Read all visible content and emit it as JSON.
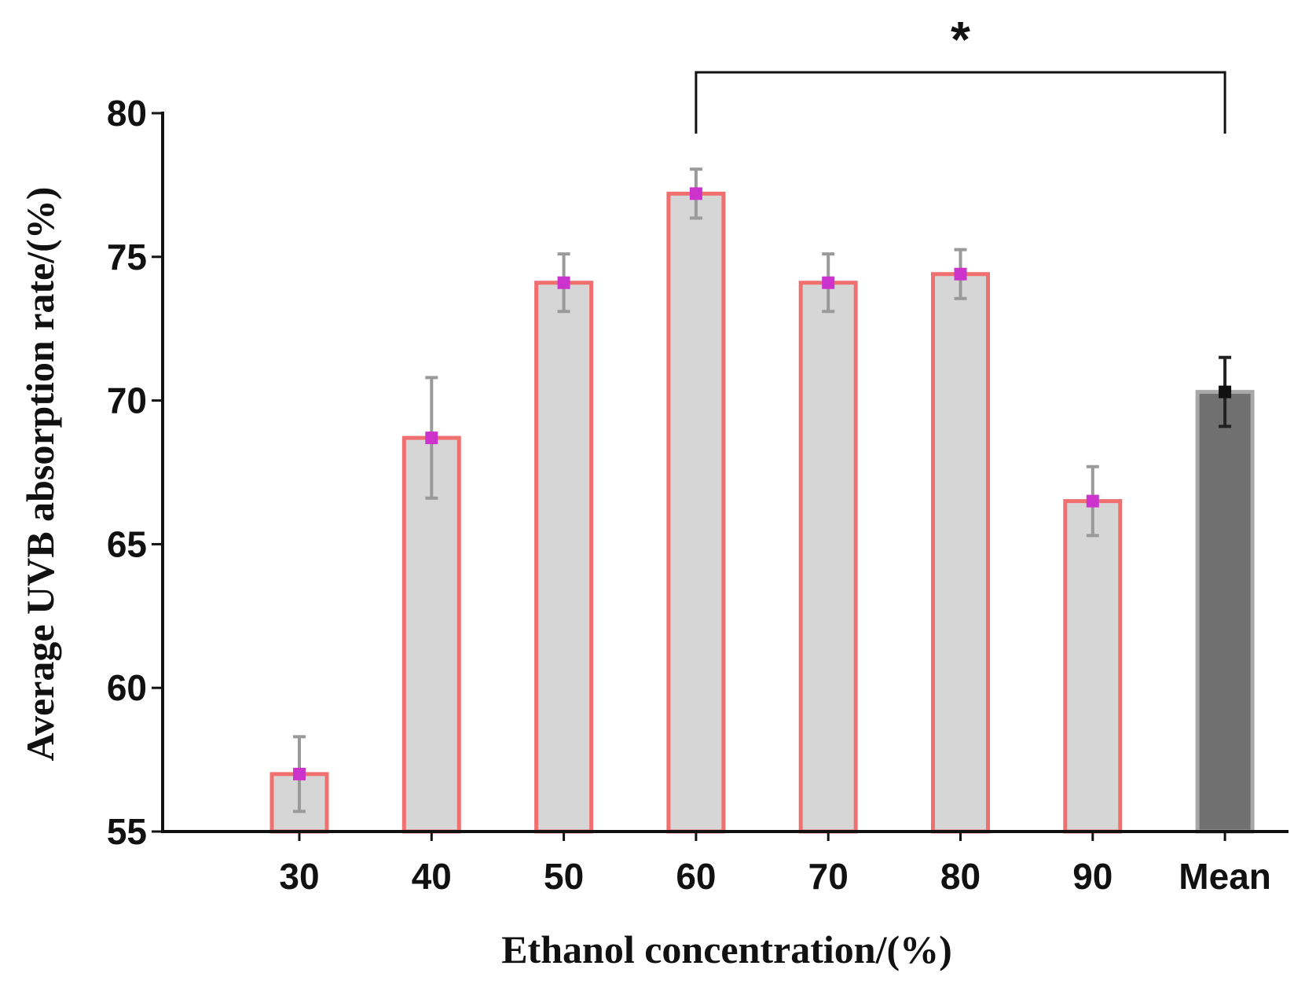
{
  "chart_data": {
    "type": "bar",
    "title": "",
    "xlabel": "Ethanol concentration/(%)",
    "ylabel": "Average UVB absorption rate/(%)",
    "ylim": [
      55,
      80
    ],
    "yticks": [
      55,
      60,
      65,
      70,
      75,
      80
    ],
    "categories": [
      "30",
      "40",
      "50",
      "60",
      "70",
      "80",
      "90",
      "Mean"
    ],
    "values": [
      57.0,
      68.7,
      74.1,
      77.2,
      74.1,
      74.4,
      66.5,
      70.3
    ],
    "errors": [
      1.3,
      2.1,
      1.0,
      0.85,
      1.0,
      0.85,
      1.2,
      1.2
    ],
    "significance": {
      "from": "60",
      "to": "Mean",
      "label": "*"
    },
    "colors": {
      "bar_fill": "#d6d6d6",
      "bar_edge": "#f07070",
      "marker": "#cc33cc",
      "error_bar": "#9a9a9a",
      "mean_fill": "#707070",
      "mean_edge": "#a8a8a8",
      "mean_marker": "#111111",
      "mean_error": "#222222",
      "axis": "#111111"
    }
  }
}
